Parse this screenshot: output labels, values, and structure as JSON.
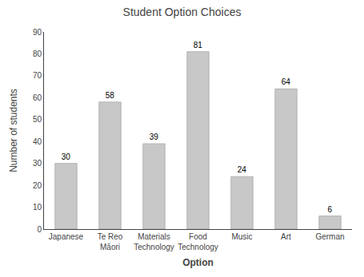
{
  "chart_data": {
    "type": "bar",
    "title": "Student Option Choices",
    "xlabel": "Option",
    "ylabel": "Number of students",
    "categories": [
      "Japanese",
      "Te Reo\nMāori",
      "Materials\nTechnology",
      "Food\nTechnology",
      "Music",
      "Art",
      "German"
    ],
    "values": [
      30,
      58,
      39,
      81,
      24,
      64,
      6
    ],
    "color": "#c8c8c8",
    "ylim": [
      0,
      90
    ],
    "yticks": [
      0,
      10,
      20,
      30,
      40,
      50,
      60,
      70,
      80,
      90
    ],
    "grid": false,
    "data_labels": true
  }
}
